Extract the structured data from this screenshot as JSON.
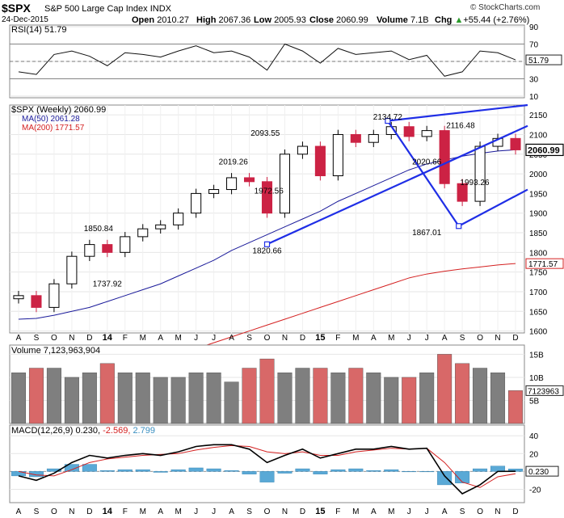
{
  "header": {
    "symbol": "$SPX",
    "name": "S&P 500 Large Cap Index",
    "exchange": "INDX",
    "date": "24-Dec-2015",
    "brand": "© StockCharts.com",
    "open_label": "Open",
    "open": "2010.27",
    "high_label": "High",
    "high": "2067.36",
    "low_label": "Low",
    "low": "2005.93",
    "close_label": "Close",
    "close": "2060.99",
    "volume_label": "Volume",
    "volume": "7.1B",
    "chg_label": "Chg",
    "chg": "+55.44 (+2.76%)",
    "chg_arrow": "▲"
  },
  "colors": {
    "up": "#000000",
    "down": "#cc2244",
    "ma50": "#1a1a9a",
    "ma200": "#d42020",
    "trend": "#1f2ee6",
    "vol_up": "#7f7f7f",
    "vol_down": "#d86868",
    "hist": "#5aa9d6"
  },
  "rsi_panel": {
    "label": "RSI(14) 51.79",
    "value": "51.79",
    "ticks": [
      "90",
      "70",
      "50",
      "30",
      "10"
    ]
  },
  "price_panel": {
    "label": "$SPX (Weekly) 2060.99",
    "ma50_label": "MA(50) 2061.28",
    "ma200_label": "MA(200) 1771.57",
    "last_value": "2060.99",
    "ma200_value": "1771.57",
    "ticks": [
      "2150",
      "2100",
      "2050",
      "2000",
      "1950",
      "1900",
      "1850",
      "1800",
      "1750",
      "1700",
      "1650",
      "1600"
    ],
    "annotations": [
      "2134.72",
      "2116.48",
      "2093.55",
      "2019.26",
      "2020.66",
      "1993.26",
      "1972.56",
      "1850.84",
      "1737.92",
      "1820.66",
      "1867.01"
    ]
  },
  "volume_panel": {
    "label": "Volume 7,123,963,904",
    "value": "7123963",
    "ticks": [
      "15B",
      "10B",
      "5B"
    ]
  },
  "macd_panel": {
    "label_main": "MACD(12,26,9) 0.230,",
    "label_signal": "-2.569,",
    "label_hist": "2.799",
    "value": "0.230",
    "ticks": [
      "40",
      "20",
      "0",
      "-20"
    ]
  },
  "x_axis": {
    "labels": [
      "A",
      "S",
      "O",
      "N",
      "D",
      "14",
      "F",
      "M",
      "A",
      "M",
      "J",
      "J",
      "A",
      "S",
      "O",
      "N",
      "D",
      "15",
      "F",
      "M",
      "A",
      "M",
      "J",
      "J",
      "A",
      "S",
      "O",
      "N",
      "D"
    ]
  },
  "chart_data": {
    "type": "candlestick",
    "period": "weekly",
    "x": [
      "2013-08",
      "2013-09",
      "2013-10",
      "2013-11",
      "2013-12",
      "2014-01",
      "2014-02",
      "2014-03",
      "2014-04",
      "2014-05",
      "2014-06",
      "2014-07",
      "2014-08",
      "2014-09",
      "2014-10",
      "2014-11",
      "2014-12",
      "2015-01",
      "2015-02",
      "2015-03",
      "2015-04",
      "2015-05",
      "2015-06",
      "2015-07",
      "2015-08",
      "2015-09",
      "2015-10",
      "2015-11",
      "2015-12"
    ],
    "close": [
      1690,
      1660,
      1720,
      1790,
      1820,
      1800,
      1840,
      1860,
      1870,
      1900,
      1950,
      1960,
      1990,
      1980,
      1900,
      2050,
      2070,
      1995,
      2100,
      2080,
      2100,
      2120,
      2095,
      2110,
      1975,
      1930,
      2070,
      2090,
      2060.99
    ],
    "ma50": [
      1630,
      1632,
      1640,
      1650,
      1660,
      1675,
      1690,
      1705,
      1720,
      1740,
      1760,
      1780,
      1805,
      1825,
      1845,
      1865,
      1885,
      1905,
      1930,
      1950,
      1970,
      1990,
      2010,
      2025,
      2035,
      2045,
      2052,
      2058,
      2061.28
    ],
    "ma200": [
      1440,
      1450,
      1460,
      1470,
      1480,
      1490,
      1500,
      1512,
      1525,
      1540,
      1555,
      1570,
      1585,
      1600,
      1615,
      1630,
      1645,
      1660,
      1675,
      1690,
      1705,
      1720,
      1735,
      1745,
      1752,
      1758,
      1763,
      1768,
      1771.57
    ],
    "ylim": [
      1595,
      2175
    ],
    "rsi": [
      38,
      35,
      58,
      62,
      56,
      45,
      60,
      58,
      55,
      62,
      68,
      60,
      62,
      55,
      40,
      70,
      62,
      48,
      65,
      58,
      60,
      62,
      52,
      57,
      33,
      38,
      62,
      60,
      51.79
    ],
    "rsi_ylim": [
      10,
      90
    ],
    "volume_billions": [
      11,
      12,
      12,
      10,
      11,
      13,
      11,
      11,
      10,
      10,
      11,
      11,
      9,
      12,
      14,
      11,
      12,
      12,
      11,
      12,
      11,
      10,
      10,
      11,
      15,
      13,
      12,
      11,
      7.12
    ],
    "macd": [
      -5,
      -10,
      -2,
      10,
      18,
      15,
      18,
      20,
      18,
      22,
      28,
      30,
      30,
      25,
      10,
      18,
      25,
      15,
      20,
      25,
      25,
      28,
      25,
      26,
      -5,
      -25,
      -15,
      0,
      0.23
    ],
    "signal": [
      0,
      -4,
      -5,
      2,
      10,
      14,
      16,
      18,
      19,
      20,
      24,
      27,
      29,
      28,
      22,
      20,
      22,
      18,
      18,
      22,
      24,
      26,
      25,
      26,
      10,
      -12,
      -18,
      -6,
      -2.569
    ],
    "histogram": [
      -5,
      -6,
      3,
      8,
      8,
      1,
      2,
      2,
      -1,
      2,
      4,
      3,
      1,
      -3,
      -12,
      -2,
      3,
      -3,
      2,
      3,
      1,
      2,
      0,
      0,
      -15,
      -13,
      3,
      6,
      2.799
    ],
    "macd_ylim": [
      -35,
      52
    ]
  }
}
